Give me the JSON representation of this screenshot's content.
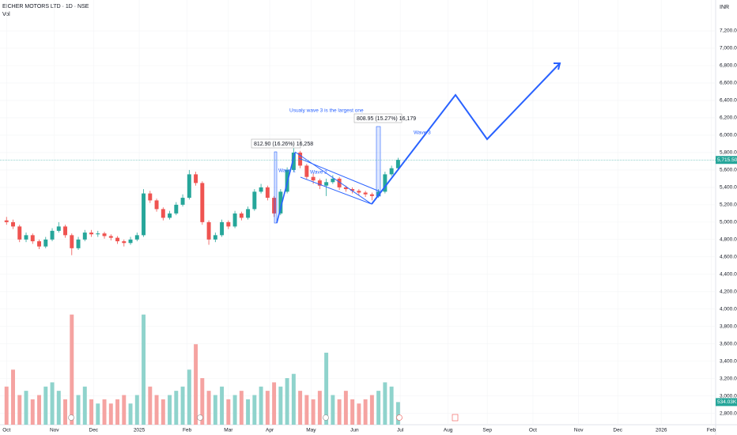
{
  "chart_data": {
    "type": "candlestick",
    "title": "EICHER MOTORS LTD · 1D · NSE",
    "volume_label": "Vol",
    "currency": "INR",
    "x": [
      0,
      3,
      6,
      9,
      12,
      15,
      18,
      21,
      24,
      27,
      30,
      33,
      36,
      39,
      42,
      45,
      48,
      51,
      54,
      57,
      60,
      63,
      66,
      69,
      72,
      75,
      78,
      81,
      84,
      87,
      90,
      93,
      96,
      99,
      102,
      105,
      108,
      111,
      114,
      117,
      120,
      123,
      126,
      129,
      132,
      135,
      138,
      141,
      144,
      147,
      150,
      153,
      156,
      159,
      162,
      165,
      168,
      171,
      174,
      177,
      180
    ],
    "open": [
      5020,
      5000,
      4950,
      4800,
      4850,
      4780,
      4720,
      4800,
      4900,
      4950,
      4850,
      4700,
      4800,
      4880,
      4860,
      4870,
      4840,
      4820,
      4780,
      4760,
      4800,
      4850,
      5330,
      5250,
      5150,
      5050,
      5100,
      5200,
      5280,
      5550,
      5450,
      5000,
      4800,
      4850,
      5000,
      4950,
      5100,
      5050,
      5150,
      5350,
      5400,
      5280,
      5100,
      5350,
      5600,
      5800,
      5650,
      5520,
      5480,
      5420,
      5460,
      5500,
      5400,
      5380,
      5360,
      5340,
      5320,
      5300,
      5350,
      5550,
      5620
    ],
    "high": [
      5060,
      5030,
      4970,
      4880,
      4870,
      4800,
      4830,
      4930,
      5000,
      4970,
      4870,
      4830,
      4910,
      4910,
      4900,
      4890,
      4860,
      4840,
      4800,
      4830,
      4880,
      5380,
      5360,
      5270,
      5170,
      5130,
      5230,
      5320,
      5600,
      5580,
      5470,
      5020,
      4880,
      5030,
      5020,
      5130,
      5120,
      5180,
      5380,
      5440,
      5420,
      5300,
      5380,
      5630,
      5850,
      5820,
      5670,
      5560,
      5500,
      5500,
      5540,
      5520,
      5420,
      5400,
      5380,
      5360,
      5340,
      5380,
      5580,
      5650,
      5740
    ],
    "low": [
      4970,
      4920,
      4770,
      4770,
      4750,
      4690,
      4700,
      4780,
      4880,
      4820,
      4620,
      4680,
      4780,
      4830,
      4830,
      4810,
      4790,
      4750,
      4720,
      4740,
      4780,
      4830,
      5220,
      5120,
      5020,
      5030,
      5080,
      5180,
      5260,
      5420,
      4970,
      4740,
      4770,
      4830,
      4920,
      4930,
      5020,
      5030,
      5130,
      5330,
      5250,
      5060,
      5080,
      5330,
      5580,
      5620,
      5490,
      5440,
      5380,
      5300,
      5440,
      5370,
      5350,
      5330,
      5310,
      5290,
      5250,
      5280,
      5330,
      5530,
      5600
    ],
    "close": [
      5000,
      4950,
      4800,
      4850,
      4780,
      4720,
      4800,
      4900,
      4950,
      4850,
      4700,
      4800,
      4880,
      4860,
      4870,
      4840,
      4820,
      4780,
      4760,
      4800,
      4850,
      5330,
      5250,
      5150,
      5050,
      5100,
      5200,
      5280,
      5550,
      5450,
      5000,
      4800,
      4850,
      5000,
      4950,
      5100,
      5050,
      5150,
      5350,
      5400,
      5280,
      5100,
      5350,
      5600,
      5800,
      5650,
      5520,
      5480,
      5420,
      5460,
      5500,
      5400,
      5380,
      5360,
      5340,
      5320,
      5300,
      5350,
      5550,
      5620,
      5715.5
    ],
    "volume": [
      900000,
      1300000,
      700000,
      800000,
      600000,
      700000,
      900000,
      1000000,
      800000,
      600000,
      2600000,
      700000,
      900000,
      600000,
      500000,
      600000,
      500000,
      600000,
      700000,
      500000,
      700000,
      2600000,
      900000,
      700000,
      600000,
      700000,
      800000,
      900000,
      1300000,
      1900000,
      1100000,
      800000,
      700000,
      900000,
      600000,
      700000,
      800000,
      600000,
      700000,
      900000,
      800000,
      1000000,
      900000,
      1100000,
      1200000,
      800000,
      700000,
      600000,
      800000,
      1700000,
      700000,
      600000,
      800000,
      600000,
      500000,
      600000,
      700000,
      800000,
      1000000,
      900000,
      534030
    ],
    "volume_lim": [
      0,
      2800000
    ],
    "up_color": "#26a69a",
    "down_color": "#ef5350",
    "volume_up_color": "#8fd3cc",
    "volume_down_color": "#f5a3a1",
    "xlim": [
      -3,
      326
    ],
    "xticks": [
      {
        "value": 0,
        "label": "Oct"
      },
      {
        "value": 22,
        "label": "Nov"
      },
      {
        "value": 40,
        "label": "Dec"
      },
      {
        "value": 61,
        "label": "2025"
      },
      {
        "value": 83,
        "label": "Feb"
      },
      {
        "value": 102,
        "label": "Mar"
      },
      {
        "value": 121,
        "label": "Apr"
      },
      {
        "value": 140,
        "label": "May"
      },
      {
        "value": 160,
        "label": "Jun"
      },
      {
        "value": 181,
        "label": "Jul"
      },
      {
        "value": 203,
        "label": "Aug"
      },
      {
        "value": 221,
        "label": "Sep"
      },
      {
        "value": 242,
        "label": "Oct"
      },
      {
        "value": 263,
        "label": "Nov"
      },
      {
        "value": 281,
        "label": "Dec"
      },
      {
        "value": 301,
        "label": "2026"
      },
      {
        "value": 324,
        "label": "Feb"
      }
    ],
    "ylim": [
      2670,
      7555
    ],
    "yticks": [
      {
        "value": 7200,
        "label": "7,200.00"
      },
      {
        "value": 7000,
        "label": "7,000.00"
      },
      {
        "value": 6800,
        "label": "6,800.00"
      },
      {
        "value": 6600,
        "label": "6,600.00"
      },
      {
        "value": 6400,
        "label": "6,400.00"
      },
      {
        "value": 6200,
        "label": "6,200.00"
      },
      {
        "value": 6000,
        "label": "6,000.00"
      },
      {
        "value": 5800,
        "label": "5,800.00"
      },
      {
        "value": 5600,
        "label": "5,600.00"
      },
      {
        "value": 5400,
        "label": "5,400.00"
      },
      {
        "value": 5200,
        "label": "5,200.00"
      },
      {
        "value": 5000,
        "label": "5,000.00"
      },
      {
        "value": 4800,
        "label": "4,800.00"
      },
      {
        "value": 4600,
        "label": "4,600.00"
      },
      {
        "value": 4400,
        "label": "4,400.00"
      },
      {
        "value": 4200,
        "label": "4,200.00"
      },
      {
        "value": 4000,
        "label": "4,000.00"
      },
      {
        "value": 3800,
        "label": "3,800.00"
      },
      {
        "value": 3600,
        "label": "3,600.00"
      },
      {
        "value": 3400,
        "label": "3,400.00"
      },
      {
        "value": 3200,
        "label": "3,200.00"
      },
      {
        "value": 3000,
        "label": "3,000.00"
      },
      {
        "value": 2800,
        "label": "2,800.00"
      }
    ],
    "price_marker": {
      "value": 5715.5,
      "label": "5,715.50"
    },
    "volume_marker": {
      "value": 534030,
      "label": "534.03K"
    },
    "annotations": [
      "812.90 (16.26%) 16,258",
      "808.95 (15.27%) 16,179",
      "Usualy wave 3 is the largest one",
      "Wave 1",
      "Wave 2",
      "Wave 3"
    ]
  }
}
